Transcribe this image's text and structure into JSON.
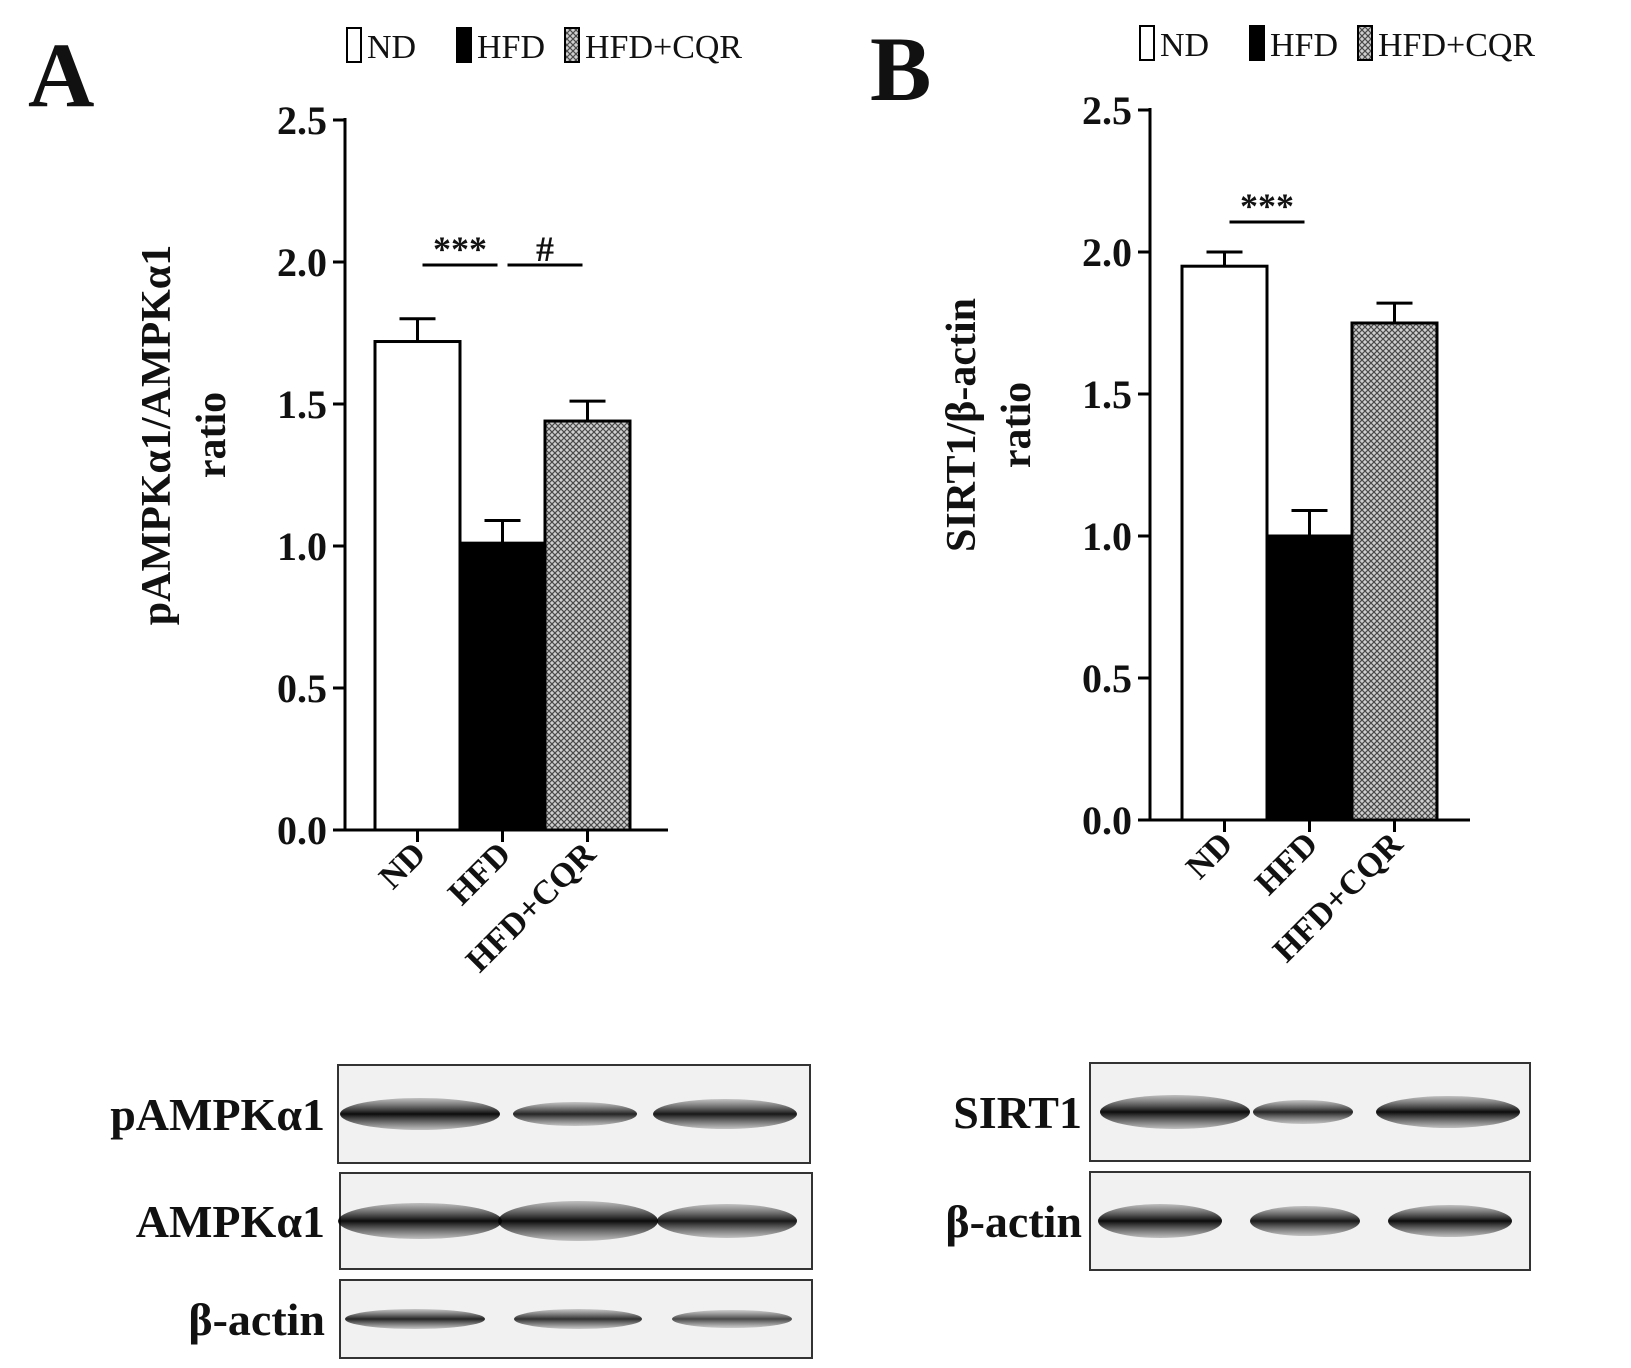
{
  "chart_data": [
    {
      "panel": "A",
      "type": "bar",
      "categories": [
        "ND",
        "HFD",
        "HFD+CQR"
      ],
      "values": [
        1.72,
        1.01,
        1.44
      ],
      "errors": [
        0.08,
        0.08,
        0.07
      ],
      "ylabel_line1": "pAMPKα1/AMPKα1",
      "ylabel_line2": "ratio",
      "ylim": [
        0,
        2.5
      ],
      "yticks": [
        "0.0",
        "0.5",
        "1.0",
        "1.5",
        "2.0",
        "2.5"
      ],
      "legend": [
        "ND",
        "HFD",
        "HFD+CQR"
      ],
      "legend_position": "top",
      "fills": [
        "white",
        "black",
        "crosshatch"
      ],
      "significance": [
        {
          "from": 0,
          "to": 1,
          "label": "***"
        },
        {
          "from": 1,
          "to": 2,
          "label": "#"
        }
      ],
      "blots": [
        "pAMPKα1",
        "AMPKα1",
        "β-actin"
      ]
    },
    {
      "panel": "B",
      "type": "bar",
      "categories": [
        "ND",
        "HFD",
        "HFD+CQR"
      ],
      "values": [
        1.95,
        1.0,
        1.75
      ],
      "errors": [
        0.05,
        0.09,
        0.07
      ],
      "ylabel_line1": "SIRT1/β-actin",
      "ylabel_line2": "ratio",
      "ylim": [
        0,
        2.5
      ],
      "yticks": [
        "0.0",
        "0.5",
        "1.0",
        "1.5",
        "2.0",
        "2.5"
      ],
      "legend": [
        "ND",
        "HFD",
        "HFD+CQR"
      ],
      "legend_position": "top",
      "fills": [
        "white",
        "black",
        "crosshatch"
      ],
      "significance": [
        {
          "from": 0,
          "to": 1,
          "label": "***"
        }
      ],
      "blots": [
        "SIRT1",
        "β-actin"
      ]
    }
  ]
}
